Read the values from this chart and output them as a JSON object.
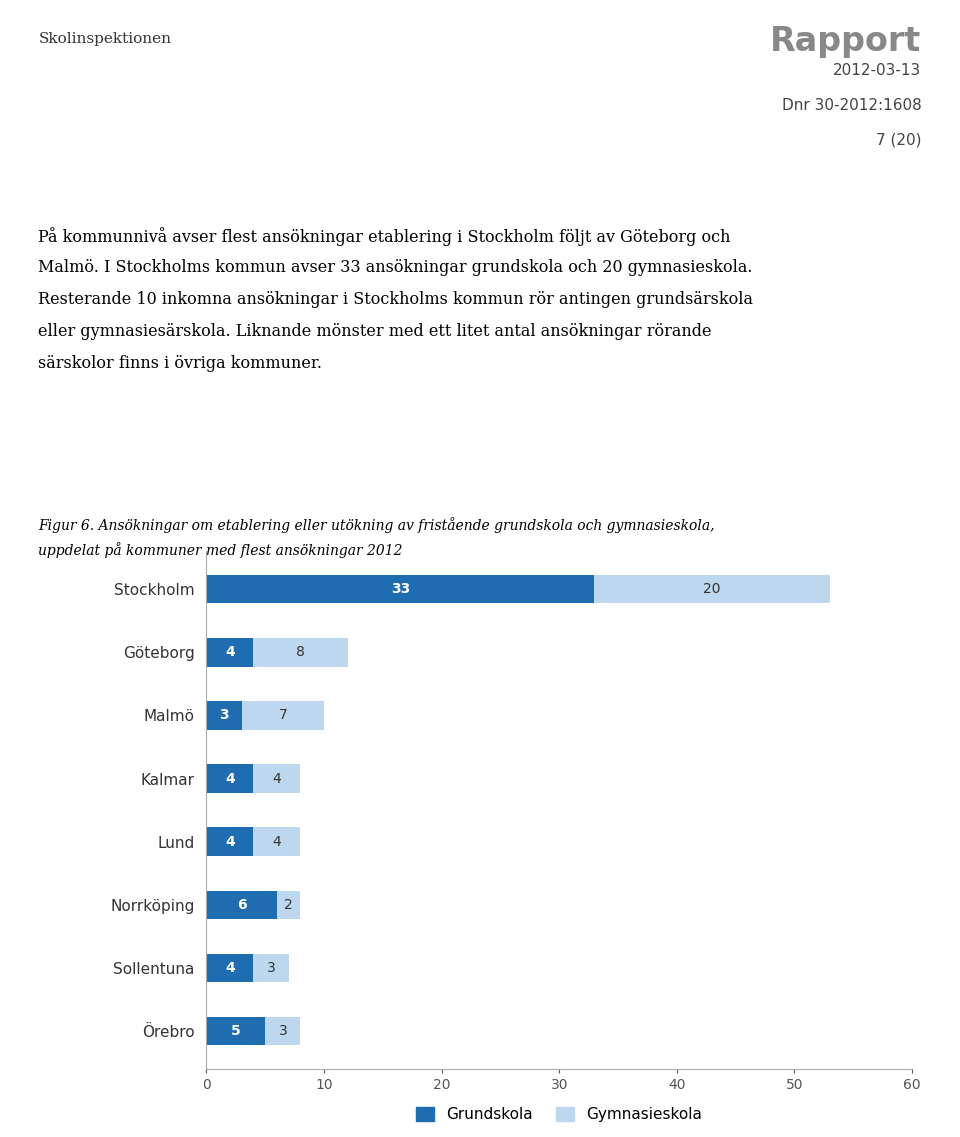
{
  "header_left": "Skolinspektionen",
  "header_right_line1": "Rapport",
  "header_right_line2": "2012-03-13",
  "header_right_line3": "Dnr 30-2012:1608",
  "header_right_line4": "7 (20)",
  "body_text_lines": [
    "På kommunnivå avser flest ansökningar etablering i Stockholm följt av Göteborg och",
    "Malmö. I Stockholms kommun avser 33 ansökningar grundskola och 20 gymnasieskola.",
    "Resterande 10 inkomna ansökningar i Stockholms kommun rör antingen grundsärskola",
    "eller gymnasiesärskola. Liknande mönster med ett litet antal ansökningar rörande",
    "särskolor finns i övriga kommuner."
  ],
  "figure_caption_line1": "Figur 6. Ansökningar om etablering eller utökning av fristående grundskola och gymnasieskola,",
  "figure_caption_line2": "uppdelat på kommuner med flest ansökningar 2012",
  "categories": [
    "Stockholm",
    "Göteborg",
    "Malmö",
    "Kalmar",
    "Lund",
    "Norrköping",
    "Sollentuna",
    "Örebro"
  ],
  "grundskola": [
    33,
    4,
    3,
    4,
    4,
    6,
    4,
    5
  ],
  "gymnasieskola": [
    20,
    8,
    7,
    4,
    4,
    2,
    3,
    3
  ],
  "color_grundskola": "#1F6CB0",
  "color_gymnasieskola": "#BDD7EE",
  "legend_grundskola": "Grundskola",
  "legend_gymnasieskola": "Gymnasieskola",
  "xlim": [
    0,
    60
  ],
  "xticks": [
    0,
    10,
    20,
    30,
    40,
    50,
    60
  ],
  "background_color": "#ffffff",
  "text_color": "#000000",
  "axis_color": "#aaaaaa"
}
